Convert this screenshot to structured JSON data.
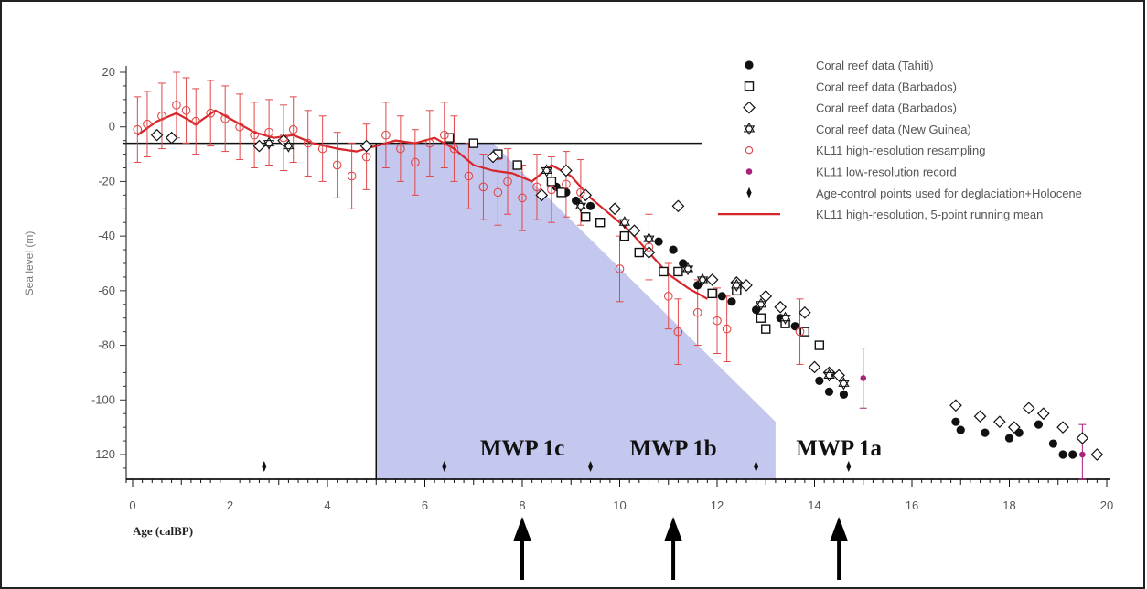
{
  "chart_data": {
    "type": "scatter",
    "xlabel": "Age (calBP)",
    "ylabel": "Sea level (m)",
    "xlim": [
      0,
      20
    ],
    "ylim": [
      -130,
      25
    ],
    "x_ticks": [
      "0",
      "2",
      "4",
      "6",
      "8",
      "10",
      "12",
      "14",
      "16",
      "18",
      "20"
    ],
    "y_ticks": [
      "20",
      "0",
      "-20",
      "-40",
      "-60",
      "-80",
      "-100",
      "-120"
    ],
    "horizontal_reference_line": {
      "y": -6,
      "x_from": 0,
      "x_to": 11.7
    },
    "vertical_reference_line": {
      "x": 5
    },
    "shaded_wedge": {
      "points": [
        [
          5,
          -6
        ],
        [
          7.4,
          -6
        ],
        [
          13.2,
          -108
        ],
        [
          13.2,
          -130
        ],
        [
          5,
          -130
        ]
      ],
      "color": "#c5c8ee"
    },
    "legend_position": "top-right",
    "series": [
      {
        "name": "Coral reef data (Tahiti)",
        "marker": "filled-circle",
        "color": "#111111",
        "points": [
          [
            8.7,
            -22
          ],
          [
            8.9,
            -24
          ],
          [
            9.1,
            -27
          ],
          [
            9.4,
            -29
          ],
          [
            10.8,
            -42
          ],
          [
            11.1,
            -45
          ],
          [
            11.3,
            -50
          ],
          [
            11.6,
            -58
          ],
          [
            12.1,
            -62
          ],
          [
            12.3,
            -64
          ],
          [
            12.8,
            -67
          ],
          [
            13.3,
            -70
          ],
          [
            13.6,
            -73
          ],
          [
            14.1,
            -93
          ],
          [
            14.3,
            -97
          ],
          [
            14.6,
            -98
          ],
          [
            16.9,
            -108
          ],
          [
            17.0,
            -111
          ],
          [
            17.5,
            -112
          ],
          [
            18.0,
            -114
          ],
          [
            18.2,
            -112
          ],
          [
            18.6,
            -109
          ],
          [
            18.9,
            -116
          ],
          [
            19.1,
            -120
          ],
          [
            19.3,
            -120
          ]
        ]
      },
      {
        "name": "Coral reef data (Barbados)",
        "marker": "open-square",
        "color": "#111111",
        "points": [
          [
            6.5,
            -4
          ],
          [
            7.0,
            -6
          ],
          [
            7.5,
            -10
          ],
          [
            7.9,
            -14
          ],
          [
            8.6,
            -20
          ],
          [
            8.8,
            -24
          ],
          [
            9.3,
            -33
          ],
          [
            9.6,
            -35
          ],
          [
            10.1,
            -40
          ],
          [
            10.4,
            -46
          ],
          [
            10.9,
            -53
          ],
          [
            11.2,
            -53
          ],
          [
            11.9,
            -61
          ],
          [
            12.4,
            -60
          ],
          [
            12.9,
            -70
          ],
          [
            13.0,
            -74
          ],
          [
            13.4,
            -72
          ],
          [
            13.8,
            -75
          ],
          [
            14.1,
            -80
          ]
        ]
      },
      {
        "name": "Coral reef data (Barbados)",
        "marker": "open-diamond",
        "color": "#111111",
        "points": [
          [
            0.5,
            -3
          ],
          [
            0.8,
            -4
          ],
          [
            2.6,
            -7
          ],
          [
            3.1,
            -5
          ],
          [
            4.8,
            -7
          ],
          [
            7.4,
            -11
          ],
          [
            8.4,
            -25
          ],
          [
            8.9,
            -16
          ],
          [
            9.3,
            -25
          ],
          [
            9.9,
            -30
          ],
          [
            10.3,
            -38
          ],
          [
            10.6,
            -46
          ],
          [
            11.2,
            -29
          ],
          [
            11.9,
            -56
          ],
          [
            12.4,
            -57
          ],
          [
            12.6,
            -58
          ],
          [
            13.0,
            -62
          ],
          [
            13.3,
            -66
          ],
          [
            13.8,
            -68
          ],
          [
            14.0,
            -88
          ],
          [
            14.3,
            -90
          ],
          [
            14.5,
            -91
          ],
          [
            16.9,
            -102
          ],
          [
            17.4,
            -106
          ],
          [
            17.8,
            -108
          ],
          [
            18.1,
            -110
          ],
          [
            18.4,
            -103
          ],
          [
            18.7,
            -105
          ],
          [
            19.1,
            -110
          ],
          [
            19.5,
            -114
          ],
          [
            19.8,
            -120
          ]
        ]
      },
      {
        "name": "Coral reef data (New Guinea)",
        "marker": "star",
        "color": "#111111",
        "points": [
          [
            2.8,
            -6
          ],
          [
            3.2,
            -7
          ],
          [
            8.5,
            -16
          ],
          [
            9.2,
            -29
          ],
          [
            10.1,
            -35
          ],
          [
            10.6,
            -41
          ],
          [
            11.4,
            -52
          ],
          [
            11.7,
            -56
          ],
          [
            12.4,
            -58
          ],
          [
            12.9,
            -65
          ],
          [
            13.4,
            -70
          ],
          [
            14.3,
            -91
          ],
          [
            14.6,
            -94
          ]
        ]
      },
      {
        "name": "KL11 high-resolution resampling",
        "marker": "open-circle",
        "color": "#e0484a",
        "points": [
          [
            0.1,
            -1
          ],
          [
            0.3,
            1
          ],
          [
            0.6,
            4
          ],
          [
            0.9,
            8
          ],
          [
            1.1,
            6
          ],
          [
            1.3,
            2
          ],
          [
            1.6,
            5
          ],
          [
            1.9,
            3
          ],
          [
            2.2,
            0
          ],
          [
            2.5,
            -3
          ],
          [
            2.8,
            -2
          ],
          [
            3.1,
            -4
          ],
          [
            3.3,
            -1
          ],
          [
            3.6,
            -6
          ],
          [
            3.9,
            -8
          ],
          [
            4.2,
            -14
          ],
          [
            4.5,
            -18
          ],
          [
            4.8,
            -11
          ],
          [
            5.2,
            -3
          ],
          [
            5.5,
            -8
          ],
          [
            5.8,
            -13
          ],
          [
            6.1,
            -6
          ],
          [
            6.4,
            -3
          ],
          [
            6.6,
            -8
          ],
          [
            6.9,
            -18
          ],
          [
            7.2,
            -22
          ],
          [
            7.5,
            -24
          ],
          [
            7.7,
            -20
          ],
          [
            8.0,
            -26
          ],
          [
            8.3,
            -22
          ],
          [
            8.6,
            -23
          ],
          [
            8.9,
            -21
          ],
          [
            9.2,
            -24
          ],
          [
            10.0,
            -52
          ],
          [
            10.6,
            -44
          ],
          [
            11.0,
            -62
          ],
          [
            11.6,
            -68
          ],
          [
            12.0,
            -71
          ],
          [
            12.2,
            -74
          ],
          [
            11.2,
            -75
          ],
          [
            13.7,
            -75
          ]
        ]
      },
      {
        "name": "KL11 low-resolution record",
        "marker": "small-dot",
        "color": "#a8237c",
        "points": [
          [
            15.0,
            -92
          ],
          [
            19.5,
            -120
          ]
        ]
      },
      {
        "name": "Age-control points used for deglaciation+Holocene",
        "marker": "small-diamond",
        "color": "#111111",
        "points": [
          [
            2.7,
            -125
          ],
          [
            6.4,
            -125
          ],
          [
            9.4,
            -125
          ],
          [
            12.8,
            -125
          ],
          [
            14.7,
            -125
          ]
        ]
      },
      {
        "name": "KL11 high-resolution, 5-point running mean",
        "marker": "line",
        "color": "#d7262a",
        "points": [
          [
            0.1,
            -3
          ],
          [
            0.5,
            2
          ],
          [
            0.9,
            5
          ],
          [
            1.3,
            1
          ],
          [
            1.7,
            6
          ],
          [
            2.1,
            2
          ],
          [
            2.5,
            -2
          ],
          [
            2.9,
            -4
          ],
          [
            3.3,
            -3
          ],
          [
            3.7,
            -6
          ],
          [
            4.2,
            -8
          ],
          [
            4.6,
            -9
          ],
          [
            5.0,
            -7
          ],
          [
            5.4,
            -5
          ],
          [
            5.8,
            -6
          ],
          [
            6.2,
            -4
          ],
          [
            6.6,
            -8
          ],
          [
            7.0,
            -14
          ],
          [
            7.4,
            -16
          ],
          [
            7.8,
            -17
          ],
          [
            8.2,
            -20
          ],
          [
            8.6,
            -14
          ],
          [
            9.0,
            -18
          ],
          [
            9.4,
            -26
          ],
          [
            9.8,
            -32
          ],
          [
            10.2,
            -38
          ],
          [
            10.6,
            -46
          ],
          [
            11.0,
            -54
          ],
          [
            11.4,
            -59
          ],
          [
            11.8,
            -63
          ]
        ]
      }
    ],
    "error_bar_halfwidth_m": 12,
    "annotations": [
      {
        "text": "MWP 1c",
        "x": 8.0
      },
      {
        "text": "MWP 1b",
        "x": 11.1
      },
      {
        "text": "MWP 1a",
        "x": 14.5
      }
    ],
    "arrows_at_x": [
      8.0,
      11.1,
      14.5
    ]
  }
}
